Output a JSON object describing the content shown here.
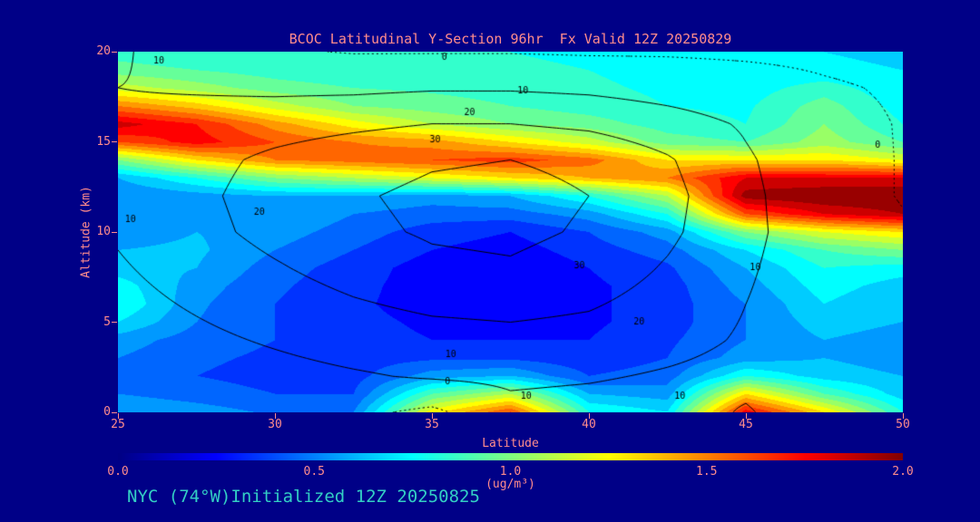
{
  "title": "BCOC Latitudinal Y-Section 96hr  Fx Valid 12Z 20250829",
  "footer": "NYC (74°W)Initialized 12Z 20250825",
  "colors": {
    "background": "#000087",
    "title_text": "#ff8c8c",
    "axis_text": "#ff8c8c",
    "footer_text": "#33cfc4",
    "contour_line": "#000000"
  },
  "axes": {
    "x_label": "Latitude",
    "y_label": "Altitude (km)",
    "x_ticks": [
      25,
      30,
      35,
      40,
      45,
      50
    ],
    "y_ticks": [
      0,
      5,
      10,
      15,
      20
    ],
    "x_range": [
      25,
      50
    ],
    "y_range": [
      0,
      20
    ]
  },
  "colorbar": {
    "ticks": [
      "0.0",
      "0.5",
      "1.0",
      "1.5",
      "2.0"
    ],
    "units": "(ug/m³)",
    "min": 0,
    "max": 2
  },
  "chart_data": {
    "type": "heatmap",
    "title": "BCOC Latitudinal Y-Section 96hr  Fx Valid 12Z 20250829",
    "xlabel": "Latitude",
    "ylabel": "Altitude (km)",
    "x_range": [
      25,
      50
    ],
    "y_range": [
      0,
      20
    ],
    "value_range": [
      0,
      2
    ],
    "value_units": "ug/m3",
    "colormap": [
      [
        0.0,
        "#000083"
      ],
      [
        0.125,
        "#0000ff"
      ],
      [
        0.375,
        "#00ffff"
      ],
      [
        0.625,
        "#ffff00"
      ],
      [
        0.875,
        "#ff0000"
      ],
      [
        1.0,
        "#800000"
      ]
    ],
    "heatmap": {
      "lat": [
        25,
        27.5,
        30,
        32.5,
        35,
        37.5,
        40,
        42.5,
        45,
        47.5,
        50
      ],
      "alt_top_to_bottom": [
        20,
        19,
        18,
        17,
        16,
        15,
        14,
        13,
        12,
        11,
        10,
        9,
        8,
        7,
        6,
        5,
        4,
        3,
        2,
        1,
        0
      ],
      "values": [
        [
          0.85,
          0.8,
          0.8,
          0.8,
          0.8,
          0.8,
          0.78,
          0.75,
          0.72,
          0.7,
          0.68
        ],
        [
          0.95,
          0.9,
          0.85,
          0.82,
          0.82,
          0.82,
          0.8,
          0.76,
          0.73,
          0.72,
          0.7
        ],
        [
          1.15,
          1.05,
          0.95,
          0.9,
          0.88,
          0.85,
          0.82,
          0.78,
          0.75,
          0.85,
          0.72
        ],
        [
          1.5,
          1.35,
          1.15,
          1.0,
          0.95,
          0.9,
          0.85,
          0.8,
          0.78,
          0.95,
          0.75
        ],
        [
          1.85,
          1.7,
          1.45,
          1.25,
          1.1,
          1.0,
          0.95,
          0.85,
          0.8,
          1.0,
          0.8
        ],
        [
          1.6,
          1.75,
          1.6,
          1.5,
          1.45,
          1.3,
          1.15,
          0.95,
          0.9,
          1.05,
          0.9
        ],
        [
          1.0,
          1.3,
          1.5,
          1.55,
          1.6,
          1.65,
          1.55,
          1.3,
          1.3,
          1.3,
          1.2
        ],
        [
          0.6,
          0.8,
          1.0,
          1.1,
          1.2,
          1.3,
          1.4,
          1.5,
          1.8,
          1.8,
          1.8
        ],
        [
          0.5,
          0.55,
          0.6,
          0.6,
          0.55,
          0.6,
          0.8,
          1.1,
          1.95,
          2.0,
          2.0
        ],
        [
          0.5,
          0.55,
          0.6,
          0.5,
          0.45,
          0.45,
          0.55,
          0.8,
          1.6,
          1.8,
          1.9
        ],
        [
          0.55,
          0.6,
          0.55,
          0.45,
          0.35,
          0.3,
          0.4,
          0.55,
          1.0,
          1.2,
          1.3
        ],
        [
          0.6,
          0.62,
          0.5,
          0.4,
          0.3,
          0.25,
          0.35,
          0.45,
          0.7,
          0.9,
          1.0
        ],
        [
          0.65,
          0.6,
          0.45,
          0.35,
          0.25,
          0.2,
          0.3,
          0.38,
          0.6,
          0.8,
          0.75
        ],
        [
          0.75,
          0.55,
          0.42,
          0.33,
          0.25,
          0.2,
          0.28,
          0.35,
          0.55,
          0.75,
          0.65
        ],
        [
          0.8,
          0.52,
          0.4,
          0.32,
          0.25,
          0.22,
          0.28,
          0.35,
          0.5,
          0.7,
          0.6
        ],
        [
          0.7,
          0.5,
          0.4,
          0.33,
          0.28,
          0.25,
          0.28,
          0.35,
          0.5,
          0.65,
          0.6
        ],
        [
          0.55,
          0.45,
          0.4,
          0.34,
          0.3,
          0.3,
          0.3,
          0.38,
          0.5,
          0.6,
          0.55
        ],
        [
          0.5,
          0.42,
          0.38,
          0.35,
          0.38,
          0.38,
          0.33,
          0.4,
          0.55,
          0.6,
          0.55
        ],
        [
          0.45,
          0.4,
          0.36,
          0.36,
          0.55,
          0.6,
          0.4,
          0.45,
          0.8,
          0.65,
          0.6
        ],
        [
          0.5,
          0.45,
          0.4,
          0.4,
          0.9,
          1.1,
          0.6,
          0.55,
          1.3,
          0.9,
          0.65
        ],
        [
          0.6,
          0.55,
          0.48,
          0.5,
          1.25,
          1.6,
          0.8,
          0.7,
          1.75,
          1.3,
          0.8
        ]
      ]
    },
    "contours": {
      "levels": [
        0,
        10,
        20,
        30
      ],
      "dashed_level": 0,
      "lat": [
        25,
        27.5,
        30,
        32.5,
        35,
        37.5,
        40,
        42.5,
        45,
        47.5,
        50
      ],
      "alt_top_to_bottom": [
        20,
        18,
        16,
        14,
        12,
        10,
        8,
        6,
        4,
        2,
        0
      ],
      "values": [
        [
          11,
          6,
          1,
          -0.5,
          -0.5,
          -0.5,
          -1,
          -1,
          -1.5,
          -2,
          -3
        ],
        [
          10,
          9,
          8,
          8,
          9,
          9,
          8,
          6,
          4,
          1,
          -1
        ],
        [
          12,
          14,
          16,
          18,
          20,
          20,
          18,
          14,
          9,
          3,
          -0.5
        ],
        [
          13,
          17,
          22,
          26,
          29,
          30,
          28,
          21,
          11,
          4,
          -0.5
        ],
        [
          12,
          18,
          24,
          29,
          32,
          33,
          30,
          23,
          12,
          4,
          -0.5
        ],
        [
          11,
          17,
          23,
          28,
          31,
          32,
          29,
          22,
          12,
          5,
          1
        ],
        [
          9,
          14,
          19,
          24,
          28,
          29,
          26,
          19,
          11,
          5,
          1
        ],
        [
          7,
          11,
          15,
          19,
          22,
          23,
          21,
          16,
          10,
          5,
          2
        ],
        [
          5,
          8,
          11,
          14,
          16,
          17,
          16,
          13,
          9,
          5,
          2
        ],
        [
          3,
          5,
          7,
          9,
          11,
          12,
          11,
          9,
          7,
          4,
          2
        ],
        [
          1,
          2,
          3,
          2,
          -2,
          7,
          6,
          5,
          11,
          3,
          1
        ]
      ]
    },
    "contour_labels": [
      {
        "text": "10",
        "lat": 26.3,
        "alt": 19.5
      },
      {
        "text": "0",
        "lat": 35.4,
        "alt": 19.7
      },
      {
        "text": "10",
        "lat": 37.9,
        "alt": 17.8
      },
      {
        "text": "20",
        "lat": 36.2,
        "alt": 16.6
      },
      {
        "text": "30",
        "lat": 35.1,
        "alt": 15.1
      },
      {
        "text": "20",
        "lat": 29.5,
        "alt": 11.1
      },
      {
        "text": "10",
        "lat": 25.4,
        "alt": 10.7
      },
      {
        "text": "30",
        "lat": 39.7,
        "alt": 8.1
      },
      {
        "text": "20",
        "lat": 41.6,
        "alt": 5.0
      },
      {
        "text": "10",
        "lat": 45.3,
        "alt": 8.0
      },
      {
        "text": "0",
        "lat": 49.2,
        "alt": 14.8
      },
      {
        "text": "10",
        "lat": 35.6,
        "alt": 3.2
      },
      {
        "text": "0",
        "lat": 35.5,
        "alt": 1.7
      },
      {
        "text": "10",
        "lat": 38.0,
        "alt": 0.9
      },
      {
        "text": "10",
        "lat": 42.9,
        "alt": 0.9
      }
    ]
  }
}
